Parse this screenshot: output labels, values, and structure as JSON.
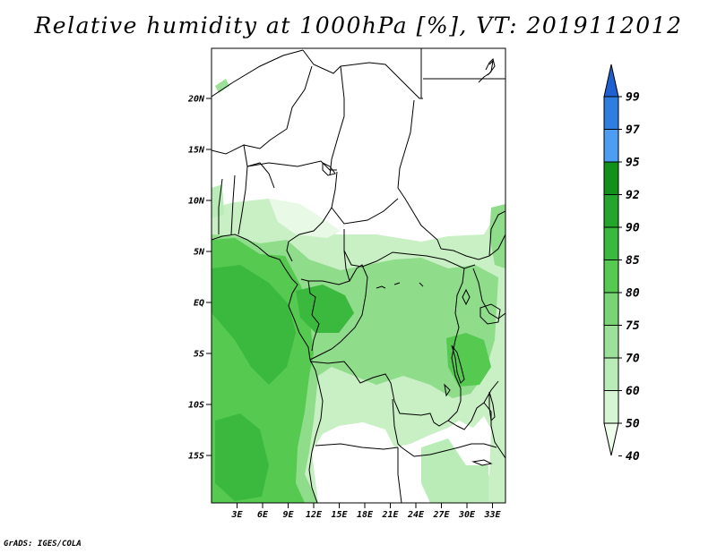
{
  "title": "Relative humidity at 1000hPa [%], VT: 2019112012",
  "credit": "GrADS: IGES/COLA",
  "map": {
    "lon_range": [
      0,
      34.5
    ],
    "lat_range": [
      -20,
      25
    ],
    "x_ticks": [
      "3E",
      "6E",
      "9E",
      "12E",
      "15E",
      "18E",
      "21E",
      "24E",
      "27E",
      "30E",
      "33E"
    ],
    "y_ticks": [
      "20N",
      "15N",
      "10N",
      "5N",
      "EQ",
      "5S",
      "10S",
      "15S"
    ],
    "shading_levels": [
      40,
      50,
      60,
      70,
      75,
      80,
      85,
      90,
      92,
      95,
      97,
      99
    ]
  },
  "colorbar": {
    "labels": [
      "99",
      "97",
      "95",
      "92",
      "90",
      "85",
      "80",
      "75",
      "70",
      "60",
      "50",
      "40"
    ],
    "colors": [
      "#1f5fd0",
      "#2f7de0",
      "#4d9ef2",
      "#11911a",
      "#24a52c",
      "#3ab93e",
      "#55c950",
      "#7ad475",
      "#9de09a",
      "#b9ecb6",
      "#d6f6d3",
      "#eefdec"
    ]
  }
}
